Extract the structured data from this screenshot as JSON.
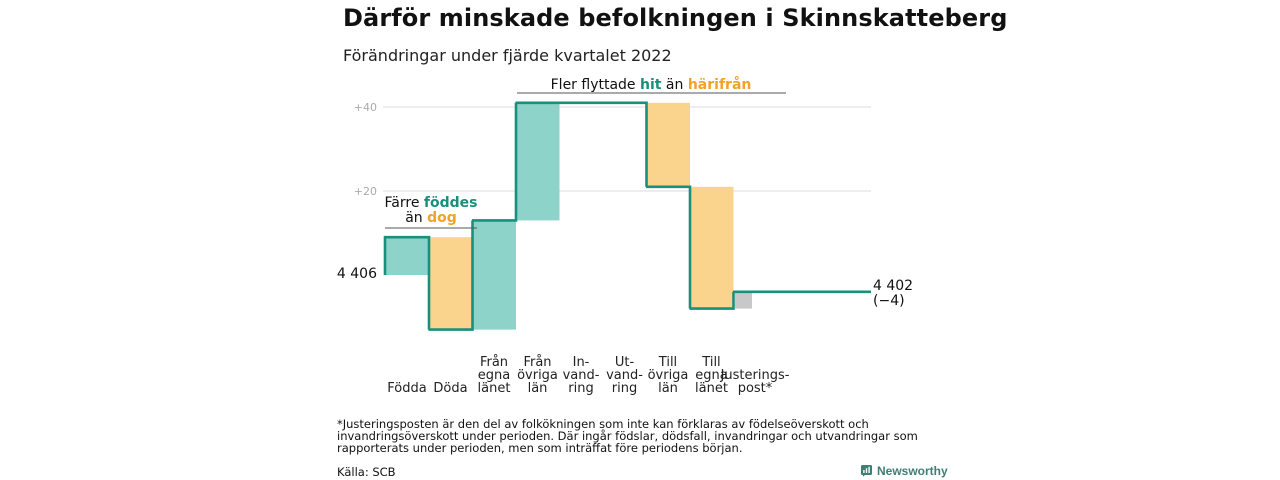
{
  "header": {
    "title": "Därför minskade befolkningen i Skinnskatteberg",
    "subtitle": "Förändringar under fjärde kvartalet 2022"
  },
  "colors": {
    "increase": "#8ed3c9",
    "decrease": "#fad48c",
    "adjustment": "#c8c8c8",
    "line": "#1a8f7b",
    "grid": "#dddddd",
    "teal_text": "#1a8f7b",
    "orange_text": "#f2a229",
    "tick_text": "#aaaaaa",
    "brand": "#3e7f73"
  },
  "chart_data": {
    "type": "waterfall",
    "start_value": 4406,
    "start_label": "4 406",
    "end_value": 4402,
    "end_label": "4 402",
    "end_change_label": "(−4)",
    "y_ticks": [
      {
        "label": "+40",
        "offset": 40
      },
      {
        "label": "+20",
        "offset": 20
      }
    ],
    "steps": [
      {
        "label_lines": [
          "Födda"
        ],
        "change": 9,
        "kind": "increase"
      },
      {
        "label_lines": [
          "Döda"
        ],
        "change": -22,
        "kind": "decrease"
      },
      {
        "label_lines": [
          "Från",
          "egna",
          "länet"
        ],
        "change": 26,
        "kind": "increase"
      },
      {
        "label_lines": [
          "Från",
          "övriga",
          "län"
        ],
        "change": 28,
        "kind": "increase"
      },
      {
        "label_lines": [
          "In-",
          "vand-",
          "ring"
        ],
        "change": 0,
        "kind": "increase"
      },
      {
        "label_lines": [
          "Ut-",
          "vand-",
          "ring"
        ],
        "change": 0,
        "kind": "decrease"
      },
      {
        "label_lines": [
          "Till",
          "övriga",
          "län"
        ],
        "change": -20,
        "kind": "decrease"
      },
      {
        "label_lines": [
          "Till",
          "egna",
          "länet"
        ],
        "change": -29,
        "kind": "decrease"
      },
      {
        "label_lines": [
          "Justerings-",
          "post*"
        ],
        "change": 4,
        "kind": "adjustment"
      }
    ],
    "annotations": {
      "births": {
        "pre": "Färre ",
        "hi1": "föddes",
        "mid": "än ",
        "hi2": "dog"
      },
      "migration": {
        "pre": "Fler flyttade ",
        "hi1": "hit",
        "mid": " än ",
        "hi2": "härifrån"
      }
    }
  },
  "footer": {
    "footnote": "*Justeringsposten är den del av folkökningen som inte kan förklaras av födelseöverskott och invandringsöverskott under perioden. Där ingår födslar, dödsfall, invandringar och utvandringar som rapporterats under perioden, men som inträffat före periodens början.",
    "source": "Källa: SCB",
    "brand": "Newsworthy",
    "brand_icon": "newsworthy-logo-icon"
  }
}
